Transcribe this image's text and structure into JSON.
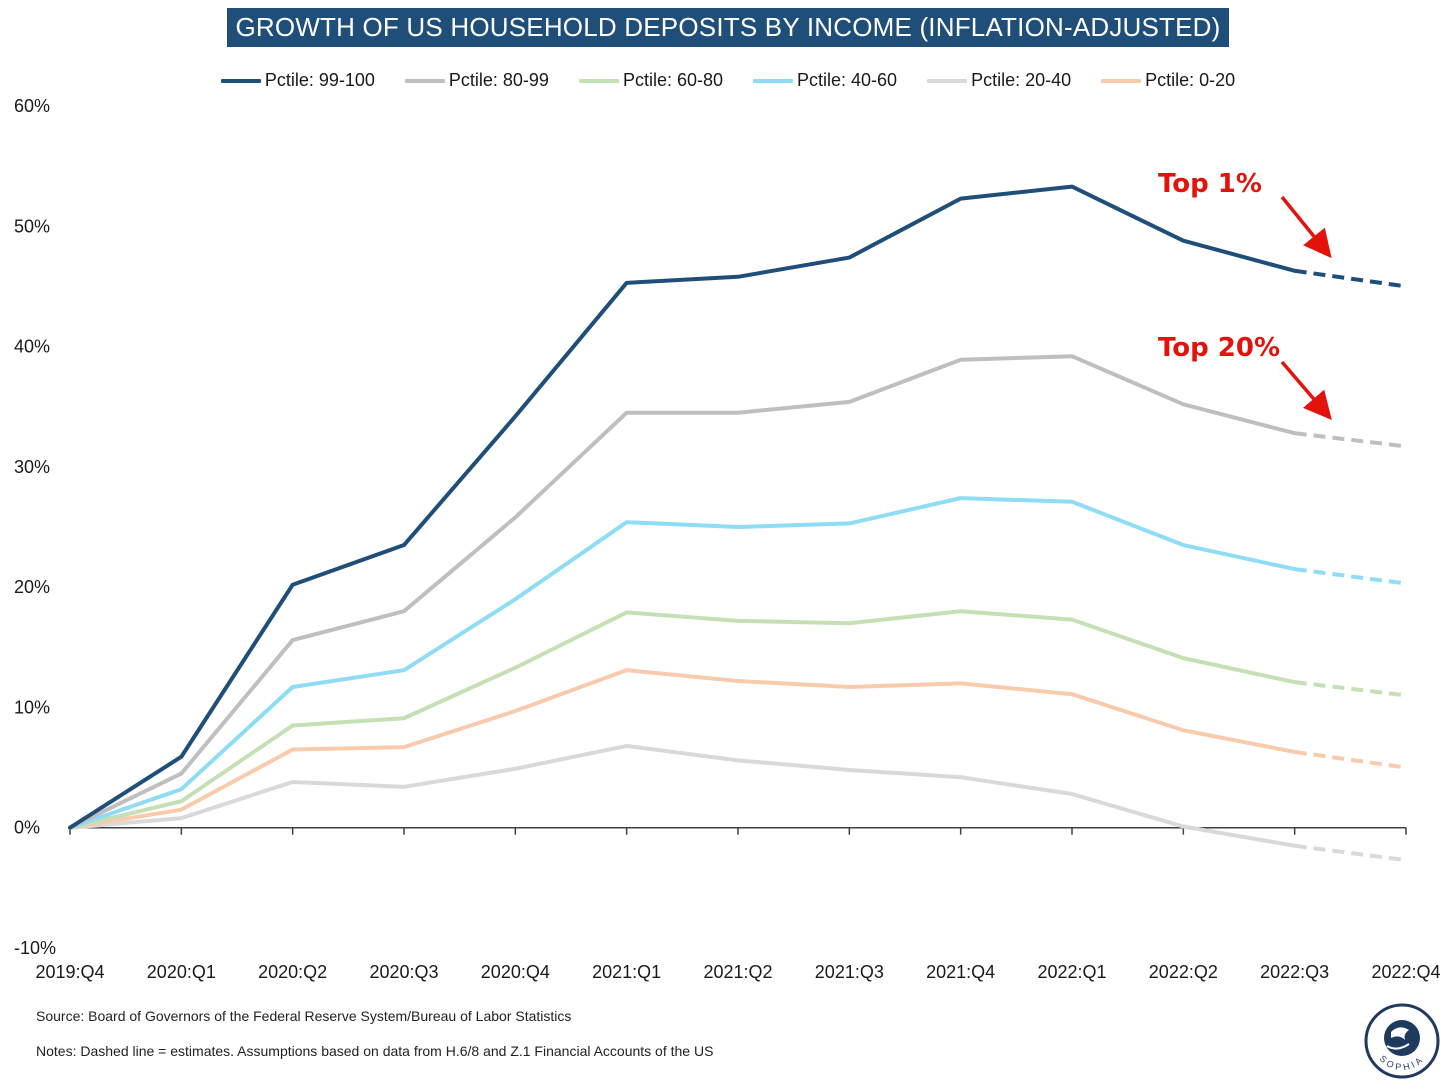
{
  "colors": {
    "title_bg": "#1f4e79",
    "annotation": "#e3120b"
  },
  "footer": {
    "source": "Source: Board of Governors of the Federal Reserve System/Bureau of Labor Statistics",
    "notes": "Notes: Dashed line = estimates. Assumptions based on data from H.6/8 and Z.1 Financial Accounts of the US"
  },
  "logo": {
    "text": "SOPHIA"
  },
  "chart_data": {
    "type": "line",
    "title": "GROWTH OF US HOUSEHOLD DEPOSITS BY INCOME (INFLATION-ADJUSTED)",
    "xlabel": "",
    "ylabel": "",
    "categories": [
      "2019:Q4",
      "2020:Q1",
      "2020:Q2",
      "2020:Q3",
      "2020:Q4",
      "2021:Q1",
      "2021:Q2",
      "2021:Q3",
      "2021:Q4",
      "2022:Q1",
      "2022:Q2",
      "2022:Q3",
      "2022:Q4"
    ],
    "ylim": [
      -10,
      60
    ],
    "yticks": [
      -10,
      0,
      10,
      20,
      30,
      40,
      50,
      60
    ],
    "ytick_labels": [
      "-10%",
      "0%",
      "10%",
      "20%",
      "30%",
      "40%",
      "50%",
      "60%"
    ],
    "grid": false,
    "legend_position": "top-center",
    "estimate_from_index": 11,
    "series": [
      {
        "name": "Pctile: 99-100",
        "color": "#1f4e79",
        "values": [
          0,
          5.9,
          20.2,
          23.5,
          34.2,
          45.3,
          45.8,
          47.4,
          52.3,
          53.3,
          48.8,
          46.3,
          45.0
        ]
      },
      {
        "name": "Pctile: 80-99",
        "color": "#bfbfbf",
        "values": [
          0,
          4.5,
          15.6,
          18.0,
          25.8,
          34.5,
          34.5,
          35.4,
          38.9,
          39.2,
          35.2,
          32.8,
          31.7
        ]
      },
      {
        "name": "Pctile: 60-80",
        "color": "#c5e0b4",
        "values": [
          0,
          2.2,
          8.5,
          9.1,
          13.3,
          17.9,
          17.2,
          17.0,
          18.0,
          17.3,
          14.1,
          12.1,
          11.0
        ]
      },
      {
        "name": "Pctile: 40-60",
        "color": "#8fdcf5",
        "values": [
          0,
          3.2,
          11.7,
          13.1,
          19.0,
          25.4,
          25.0,
          25.3,
          27.4,
          27.1,
          23.5,
          21.5,
          20.3
        ]
      },
      {
        "name": "Pctile: 20-40",
        "color": "#d9d9d9",
        "values": [
          0,
          0.8,
          3.8,
          3.4,
          4.9,
          6.8,
          5.6,
          4.8,
          4.2,
          2.8,
          0.1,
          -1.5,
          -2.7
        ]
      },
      {
        "name": "Pctile: 0-20",
        "color": "#f8cbad",
        "values": [
          0,
          1.5,
          6.5,
          6.7,
          9.7,
          13.1,
          12.2,
          11.7,
          12.0,
          11.1,
          8.1,
          6.3,
          5.0
        ]
      }
    ],
    "annotations": [
      {
        "text": "Top 1%",
        "series_index": 0
      },
      {
        "text": "Top 20%",
        "series_index": 1
      }
    ]
  }
}
